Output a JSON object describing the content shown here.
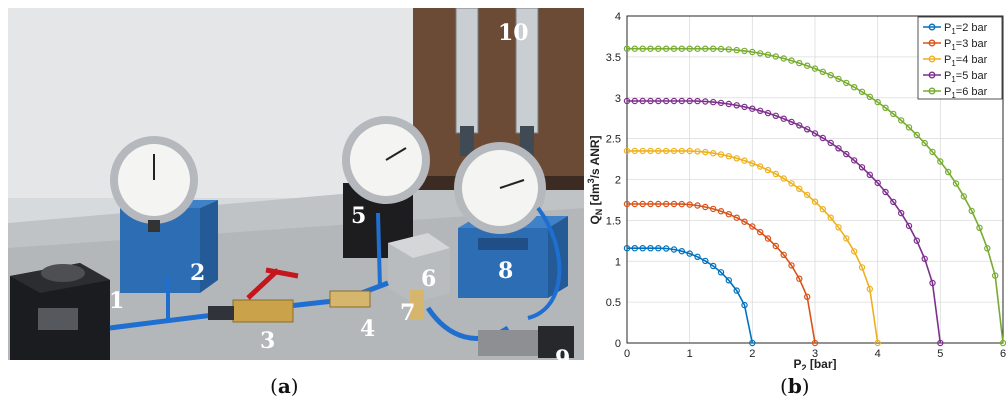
{
  "photo": {
    "labels": [
      "1",
      "2",
      "3",
      "4",
      "5",
      "6",
      "7",
      "8",
      "9",
      "10"
    ]
  },
  "captions": {
    "a": "a",
    "b": "b"
  },
  "colors": {
    "series": [
      "#0072bd",
      "#d95319",
      "#edb120",
      "#7e2f8e",
      "#77ac30"
    ]
  },
  "chart_data": {
    "type": "line",
    "xlabel": "P",
    "xlabel_sub": "2",
    "xlabel_unit": " [bar]",
    "ylabel": "Q",
    "ylabel_sub": "N",
    "ylabel_unit_pre": " [dm",
    "ylabel_sup": "3",
    "ylabel_unit_post": "/s ANR]",
    "xlim": [
      0,
      6
    ],
    "ylim": [
      0,
      4
    ],
    "xticks": [
      "0",
      "1",
      "2",
      "3",
      "4",
      "5",
      "6"
    ],
    "yticks": [
      "0",
      "0.5",
      "1",
      "1.5",
      "2",
      "2.5",
      "3",
      "3.5",
      "4"
    ],
    "grid": true,
    "legend_position": "top-right",
    "series": [
      {
        "name_main": "P",
        "name_sub": "1",
        "name_rest": "=2 bar",
        "p1": 2,
        "qmax": 1.16,
        "plateau": 0.5
      },
      {
        "name_main": "P",
        "name_sub": "1",
        "name_rest": "=3 bar",
        "p1": 3,
        "qmax": 1.7,
        "plateau": 0.8
      },
      {
        "name_main": "P",
        "name_sub": "1",
        "name_rest": "=4 bar",
        "p1": 4,
        "qmax": 2.35,
        "plateau": 0.9
      },
      {
        "name_main": "P",
        "name_sub": "1",
        "name_rest": "=5 bar",
        "p1": 5,
        "qmax": 2.96,
        "plateau": 1.0
      },
      {
        "name_main": "P",
        "name_sub": "1",
        "name_rest": "=6 bar",
        "p1": 6,
        "qmax": 3.6,
        "plateau": 1.3
      }
    ]
  }
}
